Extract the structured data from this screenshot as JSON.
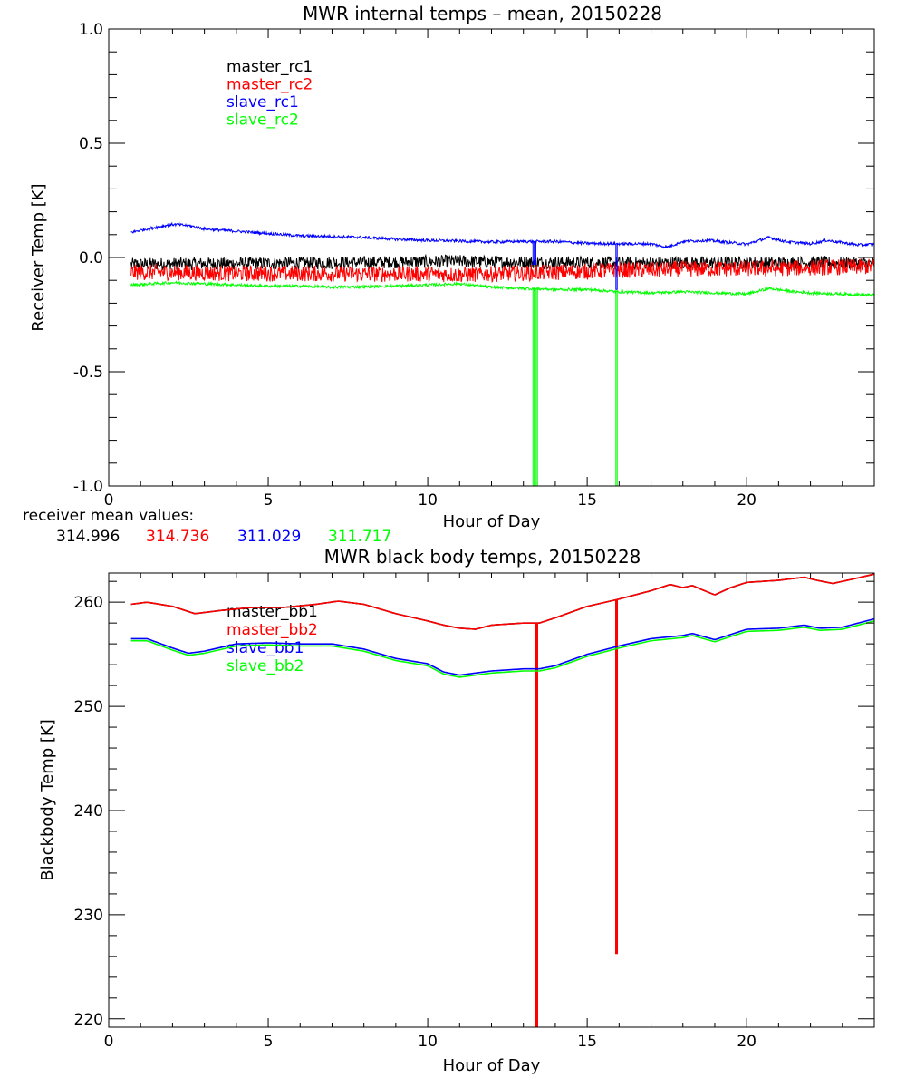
{
  "chart_data": [
    {
      "type": "line",
      "title": "MWR internal temps – mean, 20150228",
      "xlabel": "Hour of Day",
      "ylabel": "Receiver Temp [K]",
      "xlim": [
        0,
        24
      ],
      "ylim": [
        -1.0,
        1.0
      ],
      "xticks": [
        0,
        5,
        10,
        15,
        20
      ],
      "xtick_labels": [
        "0",
        "5",
        "10",
        "15",
        "20"
      ],
      "yticks": [
        -1.0,
        -0.5,
        0.0,
        0.5,
        1.0
      ],
      "ytick_labels": [
        "-1.0",
        "-0.5",
        "0.0",
        "0.5",
        "1.0"
      ],
      "legend_position": "top-left",
      "grid": false,
      "series": [
        {
          "name": "master_rc1",
          "color": "#000000",
          "noise": 0.028,
          "spikes": [],
          "x": [
            0.7,
            2,
            4,
            6,
            8,
            10,
            11,
            12,
            13,
            14,
            15,
            16,
            17,
            18,
            19,
            20,
            21,
            22,
            23,
            24
          ],
          "y": [
            -0.03,
            -0.028,
            -0.026,
            -0.024,
            -0.022,
            -0.018,
            -0.016,
            -0.02,
            -0.02,
            -0.022,
            -0.022,
            -0.024,
            -0.024,
            -0.022,
            -0.024,
            -0.022,
            -0.024,
            -0.022,
            -0.024,
            -0.026
          ]
        },
        {
          "name": "master_rc2",
          "color": "#ff0000",
          "noise": 0.035,
          "spikes": [],
          "x": [
            0.7,
            2,
            4,
            6,
            8,
            10,
            11,
            12,
            13,
            14,
            15,
            16,
            17,
            18,
            19,
            20,
            21,
            22,
            23,
            24
          ],
          "y": [
            -0.065,
            -0.065,
            -0.07,
            -0.07,
            -0.072,
            -0.072,
            -0.075,
            -0.072,
            -0.068,
            -0.065,
            -0.06,
            -0.055,
            -0.055,
            -0.05,
            -0.05,
            -0.048,
            -0.048,
            -0.045,
            -0.042,
            -0.04
          ]
        },
        {
          "name": "slave_rc1",
          "color": "#0000ff",
          "noise": 0.006,
          "spikes": [
            [
              13.3,
              -0.03
            ],
            [
              13.35,
              -0.03
            ],
            [
              15.9,
              -0.14
            ]
          ],
          "x": [
            0.7,
            1.2,
            2,
            2.5,
            3,
            4,
            5,
            6,
            7,
            8,
            9,
            10,
            11,
            12,
            13,
            14,
            15,
            16,
            17,
            17.5,
            18,
            18.8,
            19.3,
            20,
            20.7,
            21.2,
            22,
            22.5,
            23,
            23.5,
            24
          ],
          "y": [
            0.11,
            0.125,
            0.145,
            0.14,
            0.125,
            0.115,
            0.105,
            0.095,
            0.092,
            0.088,
            0.08,
            0.075,
            0.072,
            0.068,
            0.07,
            0.07,
            0.062,
            0.06,
            0.06,
            0.045,
            0.07,
            0.075,
            0.068,
            0.058,
            0.088,
            0.07,
            0.06,
            0.075,
            0.065,
            0.055,
            0.058
          ]
        },
        {
          "name": "slave_rc2",
          "color": "#00ff00",
          "noise": 0.006,
          "spikes": [
            [
              13.3,
              -1.0
            ],
            [
              13.4,
              -1.0
            ],
            [
              15.9,
              -1.0
            ]
          ],
          "x": [
            0.7,
            2,
            3,
            4,
            5,
            6,
            7,
            8,
            9,
            10,
            11,
            12,
            13,
            14,
            15,
            16,
            17,
            18,
            19,
            20,
            20.7,
            21.5,
            22,
            23,
            24
          ],
          "y": [
            -0.12,
            -0.11,
            -0.115,
            -0.12,
            -0.125,
            -0.125,
            -0.13,
            -0.128,
            -0.125,
            -0.12,
            -0.115,
            -0.13,
            -0.135,
            -0.14,
            -0.14,
            -0.15,
            -0.155,
            -0.15,
            -0.155,
            -0.16,
            -0.135,
            -0.15,
            -0.155,
            -0.16,
            -0.165
          ]
        }
      ]
    },
    {
      "type": "line",
      "title": "MWR black body temps, 20150228",
      "xlabel": "Hour of Day",
      "ylabel": "Blackbody Temp [K]",
      "xlim": [
        0,
        24
      ],
      "ylim": [
        219.2,
        262.8
      ],
      "xticks": [
        0,
        5,
        10,
        15,
        20
      ],
      "xtick_labels": [
        "0",
        "5",
        "10",
        "15",
        "20"
      ],
      "yticks": [
        220,
        230,
        240,
        250,
        260
      ],
      "ytick_labels": [
        "220",
        "230",
        "240",
        "250",
        "260"
      ],
      "legend_position": "top-left",
      "grid": false,
      "series": [
        {
          "name": "master_bb1",
          "color": "#000000",
          "spikes": [],
          "x": [
            0.7,
            1.2,
            2,
            2.7,
            3.5,
            4.5,
            5.5,
            6.5,
            7.2,
            8,
            9,
            10,
            10.5,
            11,
            11.5,
            12,
            12.5,
            13,
            13.5,
            14,
            15,
            16,
            17,
            17.6,
            18,
            18.3,
            18.6,
            19,
            19.5,
            20,
            21,
            21.8,
            22.2,
            22.7,
            23.3,
            24
          ],
          "y": [
            259.8,
            260.0,
            259.6,
            258.9,
            259.2,
            259.5,
            259.5,
            259.8,
            260.1,
            259.8,
            258.9,
            258.2,
            257.8,
            257.5,
            257.4,
            257.8,
            257.9,
            258.0,
            258.0,
            258.5,
            259.6,
            260.3,
            261.1,
            261.7,
            261.4,
            261.6,
            261.2,
            260.7,
            261.4,
            261.9,
            262.1,
            262.4,
            262.1,
            261.8,
            262.2,
            262.7
          ]
        },
        {
          "name": "master_bb2",
          "color": "#ff0000",
          "spikes": [
            [
              13.4,
              219.2
            ],
            [
              15.9,
              226.3
            ]
          ],
          "x": [
            0.7,
            1.2,
            2,
            2.7,
            3.5,
            4.5,
            5.5,
            6.5,
            7.2,
            8,
            9,
            10,
            10.5,
            11,
            11.5,
            12,
            12.5,
            13,
            13.5,
            14,
            15,
            16,
            17,
            17.6,
            18,
            18.3,
            18.6,
            19,
            19.5,
            20,
            21,
            21.8,
            22.2,
            22.7,
            23.3,
            24
          ],
          "y": [
            259.8,
            260.0,
            259.6,
            258.9,
            259.2,
            259.5,
            259.5,
            259.8,
            260.1,
            259.8,
            258.9,
            258.2,
            257.8,
            257.5,
            257.4,
            257.8,
            257.9,
            258.0,
            258.0,
            258.5,
            259.6,
            260.3,
            261.1,
            261.7,
            261.4,
            261.6,
            261.2,
            260.7,
            261.4,
            261.9,
            262.1,
            262.4,
            262.1,
            261.8,
            262.2,
            262.7
          ]
        },
        {
          "name": "slave_bb1",
          "color": "#0000ff",
          "spikes": [],
          "x": [
            0.7,
            1.2,
            2,
            2.5,
            3,
            4,
            5,
            6,
            7,
            8,
            9,
            10,
            10.5,
            11,
            12,
            13,
            13.5,
            14,
            15,
            16,
            17,
            18,
            18.3,
            19,
            20,
            21,
            21.8,
            22.3,
            23,
            24
          ],
          "y": [
            256.5,
            256.5,
            255.6,
            255.1,
            255.3,
            256.0,
            256.1,
            256.0,
            256.0,
            255.5,
            254.6,
            254.1,
            253.3,
            253.0,
            253.4,
            253.6,
            253.6,
            253.9,
            255.0,
            255.8,
            256.5,
            256.8,
            257.0,
            256.4,
            257.4,
            257.5,
            257.8,
            257.5,
            257.6,
            258.4
          ]
        },
        {
          "name": "slave_bb2",
          "color": "#00ff00",
          "spikes": [],
          "x": [
            0.7,
            1.2,
            2,
            2.5,
            3,
            4,
            5,
            6,
            7,
            8,
            9,
            10,
            10.5,
            11,
            12,
            13,
            13.5,
            14,
            15,
            16,
            17,
            18,
            18.3,
            19,
            20,
            21,
            21.8,
            22.3,
            23,
            24
          ],
          "y": [
            256.3,
            256.3,
            255.4,
            254.9,
            255.1,
            255.8,
            255.9,
            255.8,
            255.8,
            255.3,
            254.4,
            253.9,
            253.1,
            252.8,
            253.2,
            253.4,
            253.4,
            253.7,
            254.8,
            255.6,
            256.3,
            256.6,
            256.8,
            256.2,
            257.2,
            257.3,
            257.6,
            257.3,
            257.4,
            258.2
          ]
        }
      ]
    }
  ],
  "mean_values": {
    "label": "receiver mean values:",
    "values": [
      {
        "text": "314.996",
        "color": "#000000"
      },
      {
        "text": "314.736",
        "color": "#ff0000"
      },
      {
        "text": "311.029",
        "color": "#0000ff"
      },
      {
        "text": "311.717",
        "color": "#00ff00"
      }
    ]
  }
}
